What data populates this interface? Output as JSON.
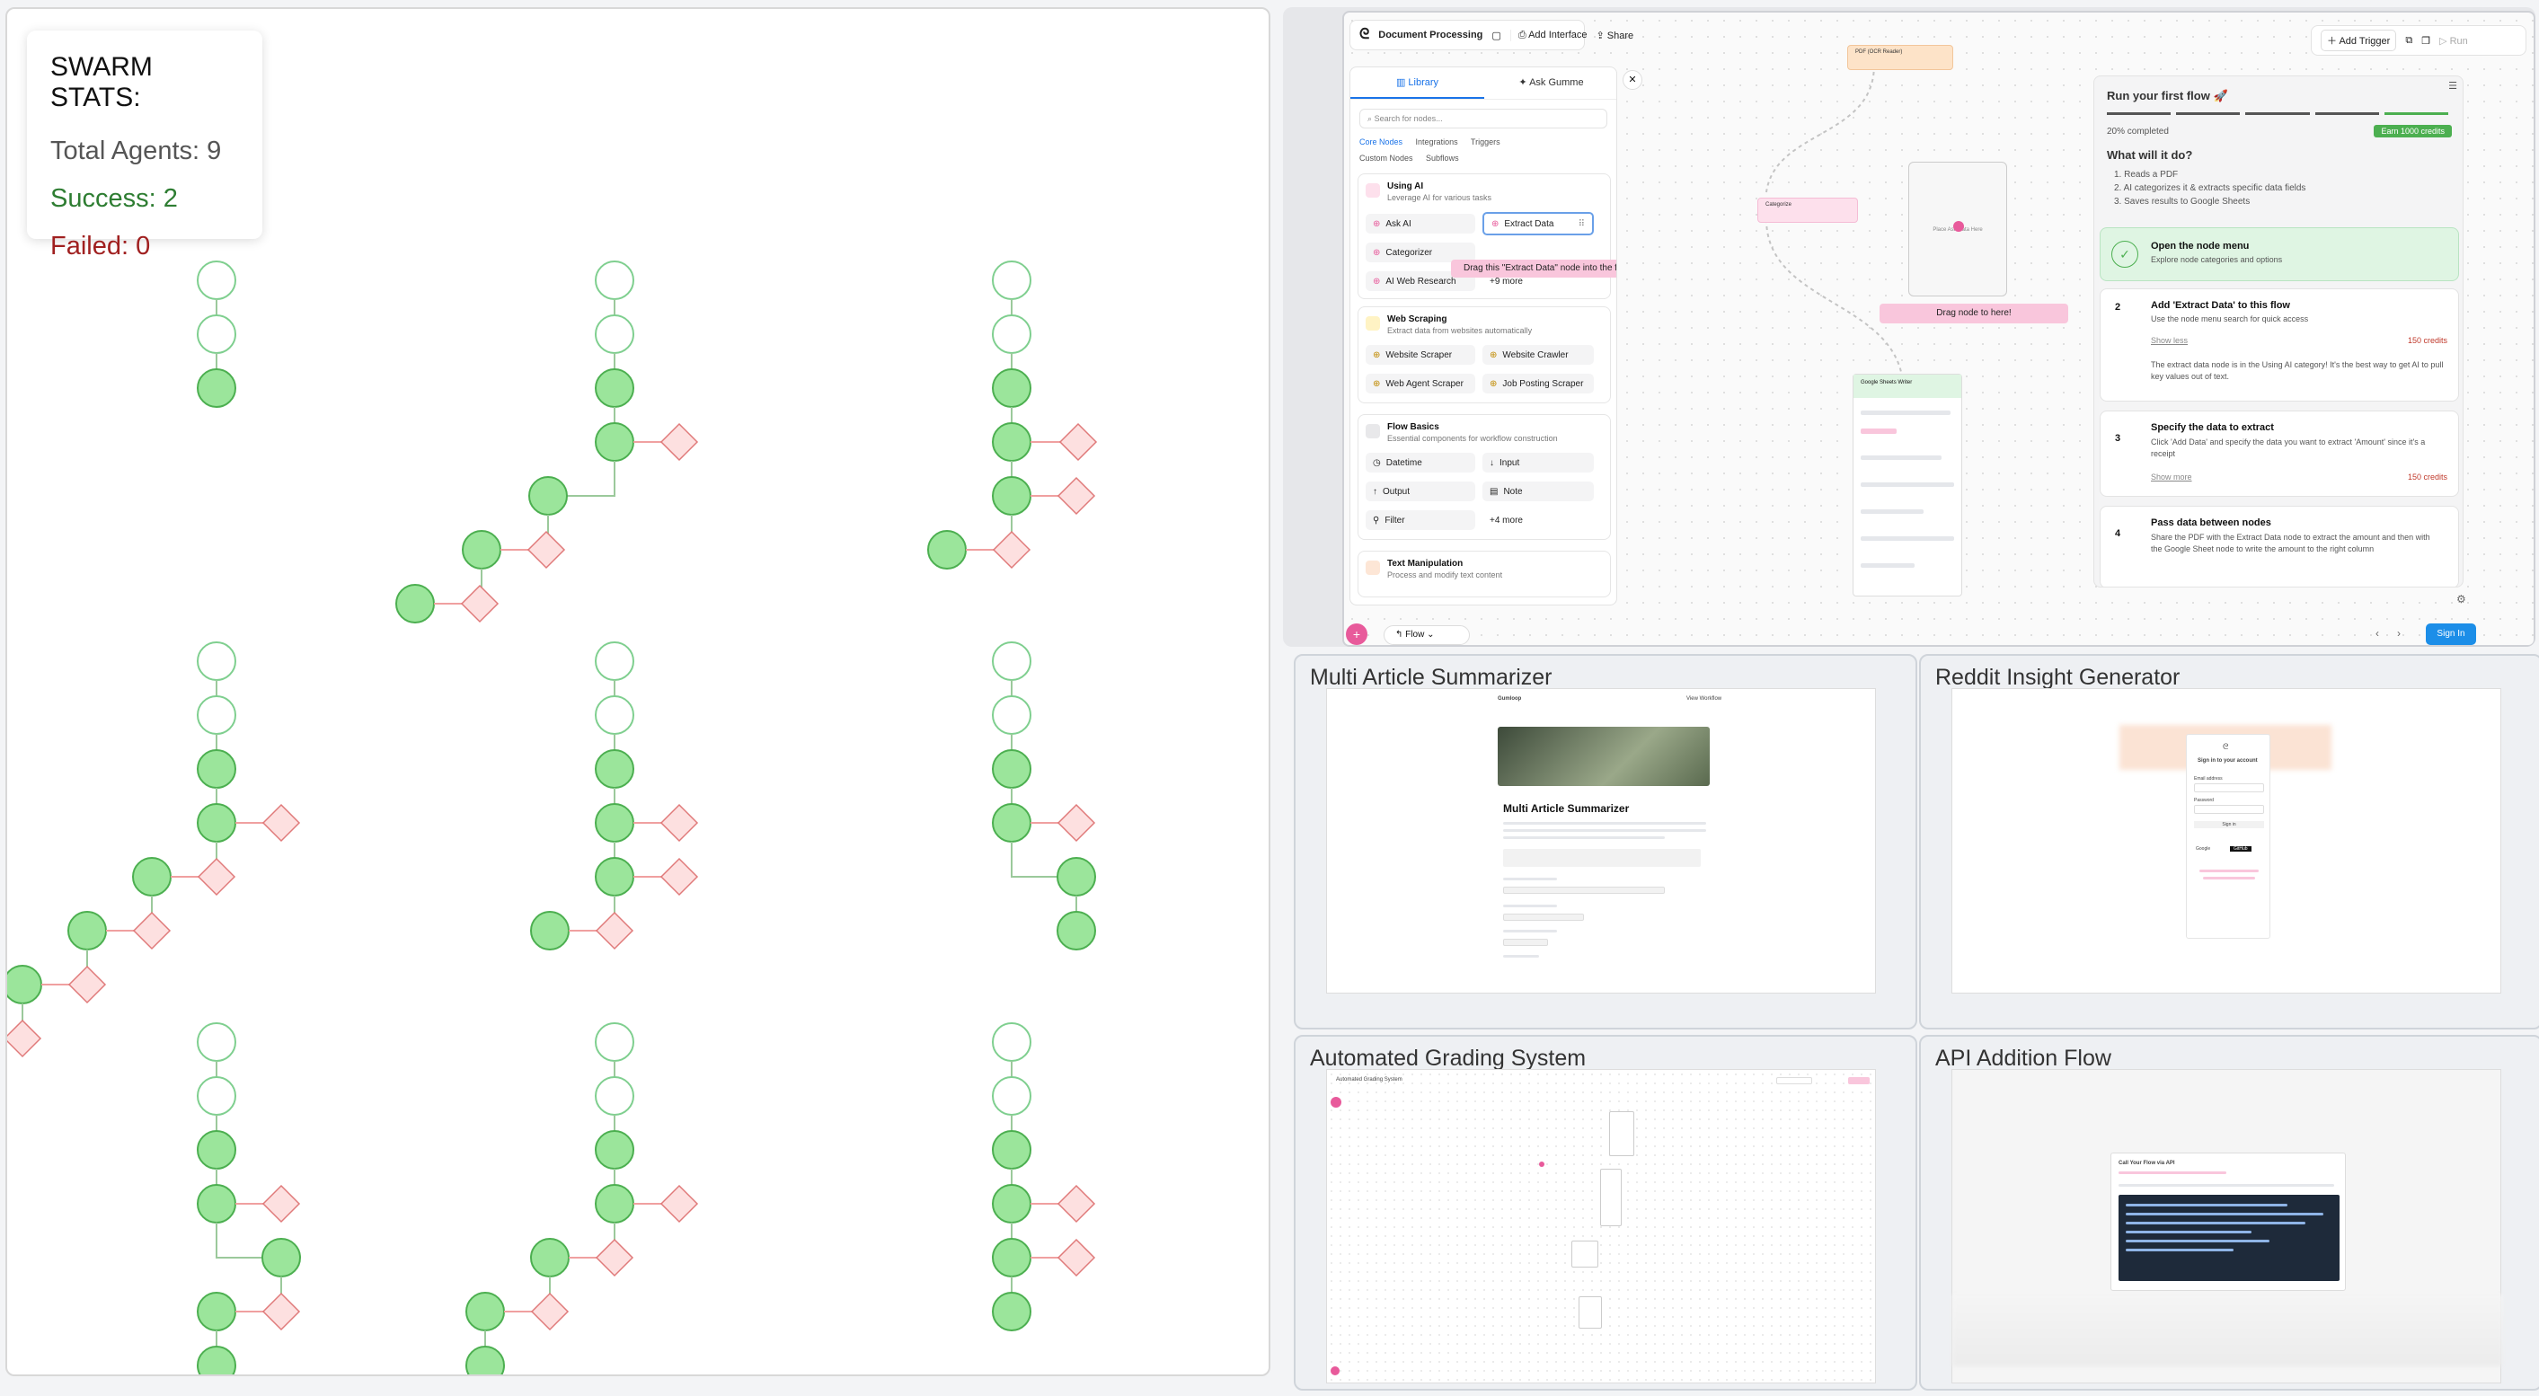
{
  "swarm_stats": {
    "title": "SWARM STATS:",
    "total": "Total Agents: 9",
    "success": "Success: 2",
    "failed": "Failed: 0"
  },
  "colors": {
    "success": "#2e7d32",
    "failed": "#a02020",
    "node_fill": "#9be59b",
    "node_stroke": "#4caf50",
    "fail_fill": "#fde0e0",
    "fail_stroke": "#e07a7a",
    "accent": "#e85a9b",
    "sign_in": "#1c8ee8"
  },
  "flow_editor": {
    "title": "Document Processing",
    "add_interface": "Add Interface",
    "share": "Share",
    "add_trigger": "Add Trigger",
    "run": "Run",
    "tabs": {
      "library": "Library",
      "ask": "Ask Gumme"
    },
    "search_placeholder": "Search for nodes...",
    "filters": [
      "Core Nodes",
      "Integrations",
      "Triggers",
      "Custom Nodes",
      "Subflows"
    ],
    "sections": [
      {
        "title": "Using AI",
        "sub": "Leverage AI for various tasks",
        "items": [
          "Ask AI",
          "Extract Data",
          "Categorizer",
          "AI Web Research",
          "+9 more"
        ]
      },
      {
        "title": "Web Scraping",
        "sub": "Extract data from websites automatically",
        "items": [
          "Website Scraper",
          "Website Crawler",
          "Web Agent Scraper",
          "Job Posting Scraper"
        ]
      },
      {
        "title": "Flow Basics",
        "sub": "Essential components for workflow construction",
        "items": [
          "Datetime",
          "Input",
          "Output",
          "Note",
          "Filter",
          "+4 more"
        ]
      },
      {
        "title": "Text Manipulation",
        "sub": "Process and modify text content",
        "items": []
      }
    ],
    "tooltip": "Drag this \"Extract Data\" node into the flow",
    "drop_hint": "Drag node to here!",
    "canvas_nodes": {
      "pdf": "PDF (OCR Reader)",
      "categorize": "Categorize",
      "sheets": "Google Sheets Writer",
      "place": "Place Ask Data Here"
    },
    "flow_label": "Flow",
    "sign_in": "Sign In"
  },
  "tutorial": {
    "title": "Run your first flow 🚀",
    "progress": "20% completed",
    "credits_badge": "Earn 1000 credits",
    "what_title": "What will it do?",
    "what_items": [
      "1. Reads a PDF",
      "2. AI categorizes it & extracts specific data fields",
      "3. Saves results to Google Sheets"
    ],
    "steps": [
      {
        "num": "",
        "title": "Open the node menu",
        "desc": "Explore node categories and options",
        "credits": ""
      },
      {
        "num": "2",
        "title": "Add 'Extract Data' to this flow",
        "desc": "Use the node menu search for quick access",
        "credits": "150 credits",
        "more": "Show less",
        "extra": "The extract data node is in the Using AI category! It's the best way to get AI to pull key values out of text."
      },
      {
        "num": "3",
        "title": "Specify the data to extract",
        "desc": "Click 'Add Data' and specify the data you want to extract 'Amount' since it's a receipt",
        "credits": "150 credits",
        "more": "Show more"
      },
      {
        "num": "4",
        "title": "Pass data between nodes",
        "desc": "Share the PDF with the Extract Data node to extract the amount and then with the Google Sheet node to write the amount to the right column",
        "credits": "",
        "more": ""
      }
    ]
  },
  "tiles": [
    {
      "title": "Multi Article Summarizer",
      "heading": "Multi Article Summarizer",
      "logo": "Gumloop",
      "link": "View Workflow"
    },
    {
      "title": "Reddit Insight Generator",
      "heading": "Sign in to your account",
      "email_label": "Email address",
      "password_label": "Password",
      "btn": "Sign in",
      "google": "Google",
      "github": "GitHub"
    },
    {
      "title": "Automated Grading System",
      "heading": "Automated Grading System"
    },
    {
      "title": "API Addition Flow",
      "heading": "Call Your Flow via API"
    }
  ]
}
